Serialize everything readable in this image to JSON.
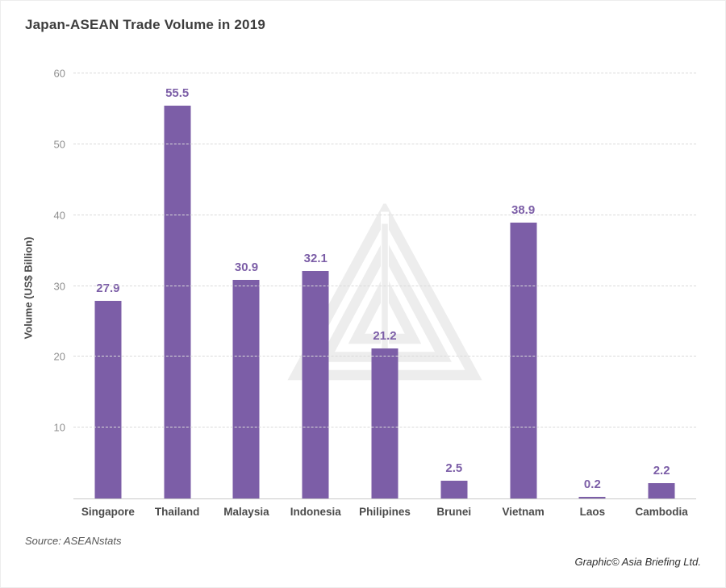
{
  "chart": {
    "source": "Source: ASEANstats",
    "credit": "Graphic© Asia Briefing Ltd."
  },
  "chart_data": {
    "type": "bar",
    "title": "Japan-ASEAN Trade Volume in 2019",
    "categories": [
      "Singapore",
      "Thailand",
      "Malaysia",
      "Indonesia",
      "Philipines",
      "Brunei",
      "Vietnam",
      "Laos",
      "Cambodia"
    ],
    "values": [
      27.9,
      55.5,
      30.9,
      32.1,
      21.2,
      2.5,
      38.9,
      0.2,
      2.2
    ],
    "xlabel": "",
    "ylabel": "Volume (US$ Billion)",
    "ylim": [
      0,
      60
    ],
    "yticks": [
      10,
      20,
      30,
      40,
      50,
      60
    ],
    "grid": true,
    "legend": "none",
    "bar_color": "#7c5ea7",
    "value_label_color": "#7c5ea7"
  }
}
